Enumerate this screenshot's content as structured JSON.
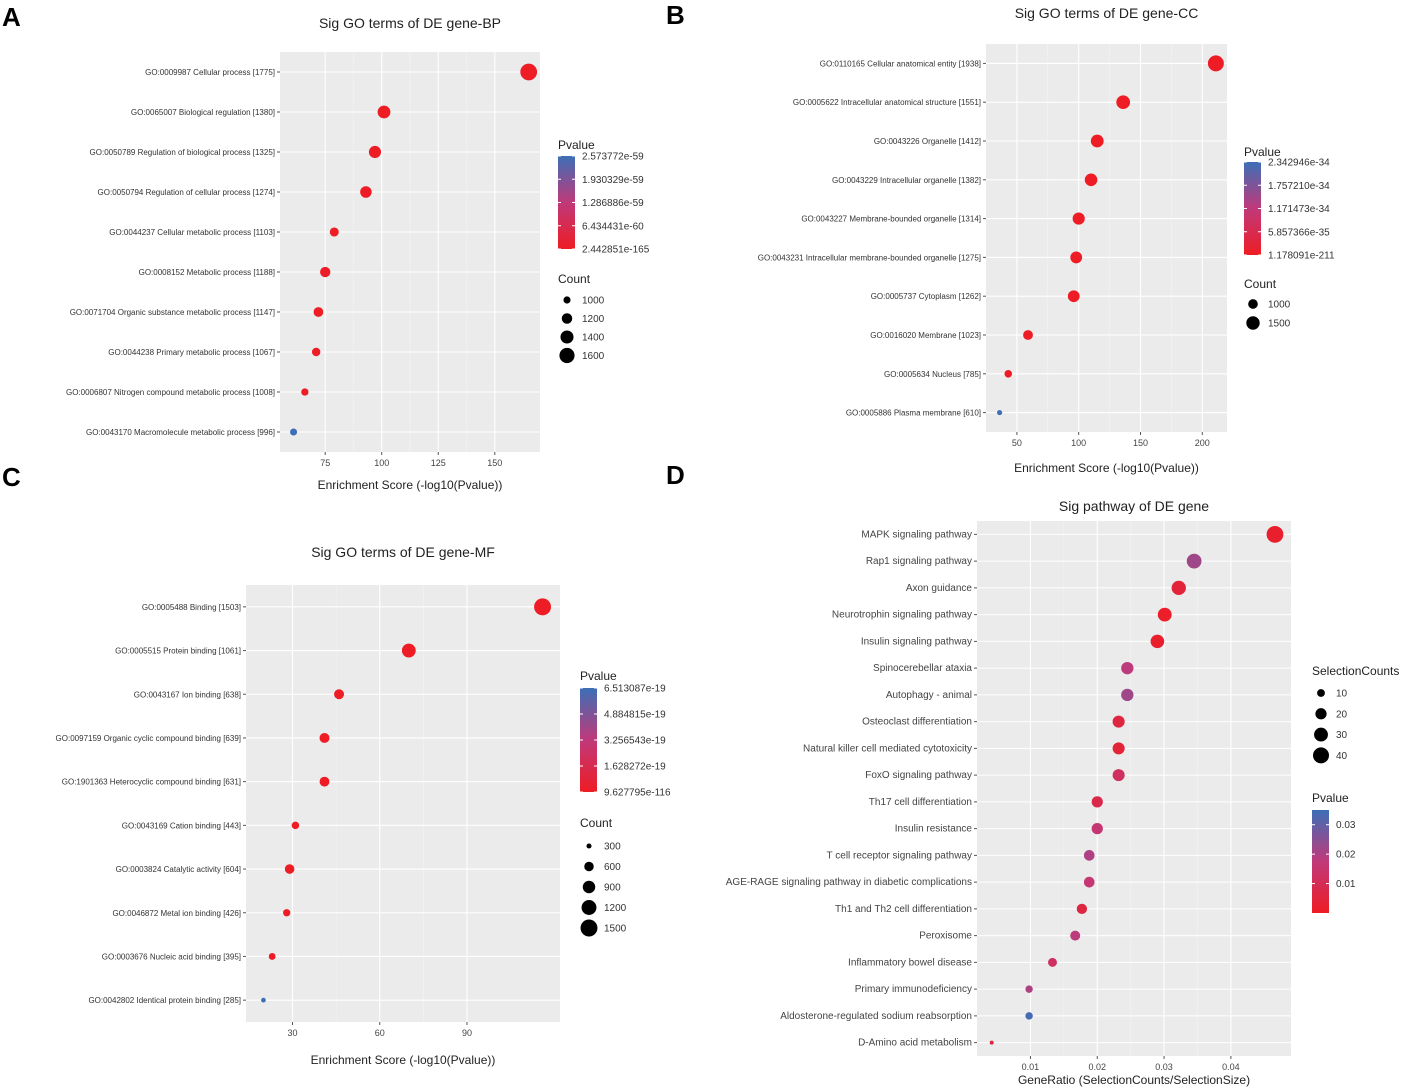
{
  "figure": {
    "panels": [
      "A",
      "B",
      "C",
      "D"
    ]
  },
  "colors": {
    "panel_bg": "#ebebeb",
    "low_color": "#ee1c24",
    "high_color": "#3d6fb6"
  },
  "chart_data": [
    {
      "id": "A",
      "type": "scatter",
      "title": "Sig GO terms of DE gene-BP",
      "xlabel": "Enrichment Score (-log10(Pvalue))",
      "ylabel": "",
      "xlim": [
        55,
        170
      ],
      "xticks": [
        75,
        100,
        125,
        150
      ],
      "categories": [
        "GO:0009987 Cellular process [1775]",
        "GO:0065007 Biological regulation [1380]",
        "GO:0050789 Regulation of biological process [1325]",
        "GO:0050794 Regulation of cellular process [1274]",
        "GO:0044237 Cellular metabolic process [1103]",
        "GO:0008152 Metabolic process [1188]",
        "GO:0071704 Organic substance metabolic process [1147]",
        "GO:0044238 Primary metabolic process [1067]",
        "GO:0006807 Nitrogen compound metabolic process [1008]",
        "GO:0043170 Macromolecule metabolic process [996]"
      ],
      "x": [
        165,
        101,
        97,
        93,
        79,
        75,
        72,
        71,
        66,
        61
      ],
      "size": [
        1775,
        1380,
        1325,
        1274,
        1103,
        1188,
        1147,
        1067,
        1008,
        996
      ],
      "color": [
        0,
        0,
        0,
        0,
        0,
        0,
        0,
        0,
        0,
        1
      ],
      "legend_color": {
        "title": "Pvalue",
        "labels": [
          "2.573772e-59",
          "1.930329e-59",
          "1.286886e-59",
          "6.434431e-60",
          "2.442851e-165"
        ]
      },
      "legend_size": {
        "title": "Count",
        "labels": [
          "1000",
          "1200",
          "1400",
          "1600"
        ],
        "values": [
          1000,
          1200,
          1400,
          1600
        ]
      }
    },
    {
      "id": "B",
      "type": "scatter",
      "title": "Sig GO terms of DE gene-CC",
      "xlabel": "Enrichment Score (-log10(Pvalue))",
      "ylabel": "",
      "xlim": [
        25,
        220
      ],
      "xticks": [
        50,
        100,
        150,
        200
      ],
      "categories": [
        "GO:0110165 Cellular anatomical entity [1938]",
        "GO:0005622 Intracellular anatomical structure [1551]",
        "GO:0043226 Organelle [1412]",
        "GO:0043229 Intracellular organelle [1382]",
        "GO:0043227 Membrane-bounded organelle [1314]",
        "GO:0043231 Intracellular membrane-bounded organelle [1275]",
        "GO:0005737 Cytoplasm [1262]",
        "GO:0016020 Membrane [1023]",
        "GO:0005634 Nucleus [785]",
        "GO:0005886 Plasma membrane [610]"
      ],
      "x": [
        211,
        136,
        115,
        110,
        100,
        98,
        96,
        59,
        43,
        36
      ],
      "size": [
        1938,
        1551,
        1412,
        1382,
        1314,
        1275,
        1262,
        1023,
        785,
        610
      ],
      "color": [
        0,
        0,
        0,
        0,
        0,
        0,
        0,
        0,
        0,
        1
      ],
      "legend_color": {
        "title": "Pvalue",
        "labels": [
          "2.342946e-34",
          "1.757210e-34",
          "1.171473e-34",
          "5.857366e-35",
          "1.178091e-211"
        ]
      },
      "legend_size": {
        "title": "Count",
        "labels": [
          "1000",
          "1500"
        ],
        "values": [
          1000,
          1500
        ]
      }
    },
    {
      "id": "C",
      "type": "scatter",
      "title": "Sig GO terms of DE gene-MF",
      "xlabel": "Enrichment Score (-log10(Pvalue))",
      "ylabel": "",
      "xlim": [
        14,
        122
      ],
      "xticks": [
        30,
        60,
        90
      ],
      "categories": [
        "GO:0005488 Binding [1503]",
        "GO:0005515 Protein binding [1061]",
        "GO:0043167 Ion binding [638]",
        "GO:0097159 Organic cyclic compound binding [639]",
        "GO:1901363 Heterocyclic compound binding [631]",
        "GO:0043169 Cation binding [443]",
        "GO:0003824 Catalytic activity [604]",
        "GO:0046872 Metal ion binding [426]",
        "GO:0003676 Nucleic acid binding [395]",
        "GO:0042802 Identical protein binding [285]"
      ],
      "x": [
        116,
        70,
        46,
        41,
        41,
        31,
        29,
        28,
        23,
        20
      ],
      "size": [
        1503,
        1061,
        638,
        639,
        631,
        443,
        604,
        426,
        395,
        285
      ],
      "color": [
        0,
        0,
        0,
        0,
        0,
        0,
        0,
        0,
        0,
        1
      ],
      "legend_color": {
        "title": "Pvalue",
        "labels": [
          "6.513087e-19",
          "4.884815e-19",
          "3.256543e-19",
          "1.628272e-19",
          "9.627795e-116"
        ]
      },
      "legend_size": {
        "title": "Count",
        "labels": [
          "300",
          "600",
          "900",
          "1200",
          "1500"
        ],
        "values": [
          300,
          600,
          900,
          1200,
          1500
        ]
      }
    },
    {
      "id": "D",
      "type": "scatter",
      "title": "Sig pathway of DE gene",
      "xlabel": "GeneRatio (SelectionCounts/SelectionSize)",
      "ylabel": "",
      "xlim": [
        0.002,
        0.049
      ],
      "xticks": [
        0.01,
        0.02,
        0.03,
        0.04
      ],
      "categories": [
        "MAPK signaling pathway",
        "Rap1 signaling pathway",
        "Axon guidance",
        "Neurotrophin signaling pathway",
        "Insulin signaling pathway",
        "Spinocerebellar ataxia",
        "Autophagy - animal",
        "Osteoclast differentiation",
        "Natural killer cell mediated cytotoxicity",
        "FoxO signaling pathway",
        "Th17 cell differentiation",
        "Insulin resistance",
        "T cell receptor signaling pathway",
        "AGE-RAGE signaling pathway in diabetic complications",
        "Th1 and Th2 cell differentiation",
        "Peroxisome",
        "Inflammatory bowel disease",
        "Primary immunodeficiency",
        "Aldosterone-regulated sodium reabsorption",
        "D-Amino acid metabolism"
      ],
      "x": [
        0.0466,
        0.0345,
        0.0322,
        0.0301,
        0.029,
        0.0245,
        0.0245,
        0.0232,
        0.0232,
        0.0232,
        0.02,
        0.02,
        0.0188,
        0.0188,
        0.0177,
        0.0167,
        0.0133,
        0.0098,
        0.0098,
        0.0042
      ],
      "size": [
        44,
        34,
        32,
        30,
        29,
        24,
        24,
        23,
        23,
        23,
        20,
        20,
        18,
        18,
        17,
        16,
        13,
        9,
        9,
        3
      ],
      "pvalue": [
        0.002,
        0.022,
        0.004,
        0.001,
        0.002,
        0.018,
        0.022,
        0.006,
        0.004,
        0.012,
        0.008,
        0.016,
        0.02,
        0.016,
        0.006,
        0.018,
        0.012,
        0.02,
        0.034,
        0.006
      ],
      "legend_size": {
        "title": "SelectionCounts",
        "labels": [
          "10",
          "20",
          "30",
          "40"
        ],
        "values": [
          10,
          20,
          30,
          40
        ]
      },
      "legend_color": {
        "title": "Pvalue",
        "labels": [
          "0.03",
          "0.02",
          "0.01"
        ],
        "values": [
          0.03,
          0.02,
          0.01
        ],
        "range": [
          0.0,
          0.035
        ]
      }
    }
  ]
}
